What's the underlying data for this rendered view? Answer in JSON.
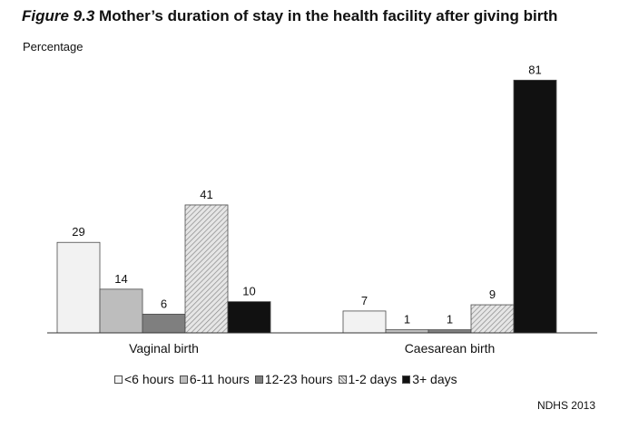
{
  "figure_label": "Figure 9.3",
  "source_note": "NDHS 2013",
  "chart_data": {
    "type": "bar",
    "title": "Mother’s duration of stay in the health facility after giving birth",
    "ylabel": "Percentage",
    "xlabel": "",
    "categories": [
      "Vaginal birth",
      "Caesarean birth"
    ],
    "series": [
      {
        "name": "<6 hours",
        "values": [
          29,
          7
        ],
        "color": "#f2f2f2",
        "pattern": "solid"
      },
      {
        "name": "6-11 hours",
        "values": [
          14,
          1
        ],
        "color": "#bdbdbd",
        "pattern": "solid"
      },
      {
        "name": "12-23 hours",
        "values": [
          6,
          1
        ],
        "color": "#7f7f7f",
        "pattern": "solid"
      },
      {
        "name": "1-2 days",
        "values": [
          41,
          9
        ],
        "color": "#d9d9d9",
        "pattern": "hatched"
      },
      {
        "name": "3+ days",
        "values": [
          10,
          81
        ],
        "color": "#111111",
        "pattern": "solid"
      }
    ],
    "ylim": [
      0,
      81
    ],
    "grid": false,
    "data_labels": true,
    "legend_position": "bottom"
  }
}
